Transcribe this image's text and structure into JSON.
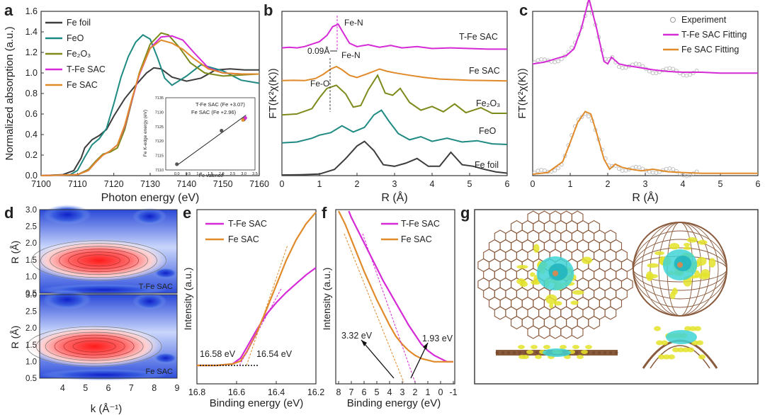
{
  "panel_letters": [
    "a",
    "b",
    "c",
    "d",
    "e",
    "f",
    "g"
  ],
  "colors": {
    "fe_foil": "#3d3d3d",
    "feo": "#1f8a82",
    "fe2o3": "#7e8a1c",
    "tfe": "#d52ad6",
    "fesac": "#e08a2a"
  },
  "chart_data": [
    {
      "panel": "a",
      "type": "line",
      "xlabel": "Photon energy (eV)",
      "ylabel": "Normalized absorption (a.u.)",
      "xlim": [
        7100,
        7160
      ],
      "ylim": [
        0.0,
        1.6
      ],
      "xticks": [
        "7100",
        "7110",
        "7120",
        "7130",
        "7140",
        "7150",
        "7160"
      ],
      "yticks": [
        "0.0",
        "0.2",
        "0.4",
        "0.6",
        "0.8",
        "1.0",
        "1.2",
        "1.4",
        "1.6"
      ],
      "legend": [
        "Fe foil",
        "FeO",
        "Fe₂O₃",
        "T-Fe SAC",
        "Fe SAC"
      ],
      "series": [
        {
          "name": "Fe foil",
          "color": "#3d3d3d",
          "x": [
            7100,
            7106,
            7109,
            7111,
            7112,
            7114,
            7116,
            7118,
            7120,
            7123,
            7126,
            7129,
            7131,
            7133,
            7136,
            7140,
            7144,
            7148,
            7152,
            7156,
            7160
          ],
          "y": [
            0.0,
            0.01,
            0.05,
            0.17,
            0.27,
            0.35,
            0.39,
            0.45,
            0.58,
            0.75,
            0.88,
            1.0,
            1.05,
            1.04,
            0.96,
            0.92,
            0.95,
            1.03,
            1.04,
            1.03,
            1.03
          ]
        },
        {
          "name": "FeO",
          "color": "#1f8a82",
          "x": [
            7100,
            7108,
            7110,
            7112,
            7114,
            7116,
            7118,
            7120,
            7122,
            7124,
            7126,
            7128,
            7130,
            7132,
            7134,
            7136,
            7140,
            7144,
            7150,
            7155,
            7160
          ],
          "y": [
            0.0,
            0.01,
            0.05,
            0.18,
            0.3,
            0.36,
            0.46,
            0.7,
            0.96,
            1.16,
            1.3,
            1.37,
            1.33,
            1.15,
            0.95,
            0.88,
            0.97,
            1.08,
            1.02,
            0.93,
            0.9
          ]
        },
        {
          "name": "Fe₂O₃",
          "color": "#7e8a1c",
          "x": [
            7100,
            7110,
            7113,
            7115,
            7117,
            7119,
            7121,
            7123,
            7125,
            7127,
            7130,
            7133,
            7135,
            7138,
            7141,
            7145,
            7150,
            7155,
            7160
          ],
          "y": [
            0.0,
            0.01,
            0.06,
            0.14,
            0.21,
            0.23,
            0.27,
            0.45,
            0.73,
            1.0,
            1.28,
            1.39,
            1.37,
            1.25,
            1.1,
            1.0,
            0.97,
            0.98,
            0.99
          ]
        },
        {
          "name": "T-Fe SAC",
          "color": "#d52ad6",
          "x": [
            7100,
            7110,
            7113,
            7115,
            7117,
            7119,
            7121,
            7123,
            7125,
            7127,
            7130,
            7133,
            7136,
            7139,
            7142,
            7146,
            7150,
            7155,
            7160
          ],
          "y": [
            0.0,
            0.01,
            0.05,
            0.13,
            0.2,
            0.24,
            0.3,
            0.48,
            0.74,
            0.98,
            1.24,
            1.35,
            1.36,
            1.32,
            1.2,
            1.05,
            1.0,
            0.99,
            0.99
          ]
        },
        {
          "name": "Fe SAC",
          "color": "#e08a2a",
          "x": [
            7100,
            7110,
            7113,
            7115,
            7117,
            7119,
            7121,
            7123,
            7125,
            7127,
            7130,
            7133,
            7136,
            7139,
            7142,
            7146,
            7150,
            7155,
            7160
          ],
          "y": [
            0.0,
            0.01,
            0.05,
            0.13,
            0.2,
            0.24,
            0.3,
            0.49,
            0.75,
            0.99,
            1.24,
            1.32,
            1.29,
            1.23,
            1.14,
            1.04,
            1.0,
            0.99,
            0.99
          ]
        }
      ],
      "inset": {
        "xlabel": "Fe valence",
        "ylabel": "Fe K-edge energy (eV)",
        "xlim": [
          -0.5,
          3.5
        ],
        "ylim": [
          7110,
          7135
        ],
        "xticks": [
          "0.0",
          "0.5",
          "1.0",
          "1.5",
          "2.0",
          "2.5",
          "3.0",
          "3.5"
        ],
        "yticks": [
          "7110",
          "7115",
          "7120",
          "7125",
          "7130",
          "7135"
        ],
        "points": [
          {
            "x": 0,
            "y": 7112.0
          },
          {
            "x": 2,
            "y": 7123.6
          },
          {
            "x": 3,
            "y": 7127.5
          }
        ],
        "sac_points": [
          {
            "x": 3.07,
            "y": 7128.0,
            "color": "#d52ad6"
          },
          {
            "x": 2.96,
            "y": 7127.3,
            "color": "#e08a2a"
          }
        ],
        "fit_line": {
          "x": [
            0,
            3.1
          ],
          "y": [
            7111.6,
            7129.0
          ]
        },
        "labels": [
          {
            "text": "T-Fe SAC (Fe +3.07)",
            "color": "#d52ad6"
          },
          {
            "text": "Fe SAC (Fe +2.96)",
            "color": "#e08a2a"
          }
        ]
      }
    },
    {
      "panel": "b",
      "type": "line",
      "xlabel": "R (Å)",
      "ylabel": "FT(K²χ(K))",
      "xlim": [
        0,
        6
      ],
      "xticks": [
        "0",
        "1",
        "2",
        "3",
        "4",
        "5",
        "6"
      ],
      "offsets": [
        4.0,
        3.0,
        1.9,
        0.9,
        0.0
      ],
      "labels": [
        "T-Fe SAC",
        "Fe SAC",
        "Fe₂O₃",
        "FeO",
        "Fe foil"
      ],
      "annotations": [
        "Fe-N",
        "0.09Å",
        "Fe-N",
        "Fe-O"
      ],
      "series": [
        {
          "name": "T-Fe SAC",
          "color": "#d52ad6",
          "x": [
            0,
            0.2,
            0.4,
            0.6,
            0.8,
            1.0,
            1.2,
            1.35,
            1.5,
            1.65,
            1.8,
            2.0,
            2.3,
            2.6,
            2.9,
            3.2,
            3.6,
            4.0,
            4.5,
            5.0,
            5.5,
            6.0
          ],
          "y": [
            0.1,
            0.12,
            0.1,
            0.14,
            0.22,
            0.3,
            0.5,
            0.78,
            0.86,
            0.55,
            0.25,
            0.14,
            0.2,
            0.12,
            0.18,
            0.1,
            0.14,
            0.08,
            0.1,
            0.08,
            0.06,
            0.06
          ]
        },
        {
          "name": "Fe SAC",
          "color": "#e08a2a",
          "x": [
            0,
            0.3,
            0.6,
            0.9,
            1.1,
            1.3,
            1.45,
            1.6,
            1.8,
            2.0,
            2.3,
            2.6,
            2.8,
            3.0,
            3.4,
            3.8,
            4.2,
            4.6,
            5.0,
            5.5,
            6.0
          ],
          "y": [
            0.05,
            0.06,
            0.05,
            0.12,
            0.25,
            0.42,
            0.5,
            0.4,
            0.22,
            0.15,
            0.28,
            0.42,
            0.35,
            0.3,
            0.22,
            0.15,
            0.1,
            0.08,
            0.06,
            0.05,
            0.04
          ]
        },
        {
          "name": "Fe₂O₃",
          "color": "#7e8a1c",
          "x": [
            0,
            0.4,
            0.8,
            1.0,
            1.2,
            1.45,
            1.7,
            1.9,
            2.1,
            2.3,
            2.55,
            2.75,
            2.95,
            3.15,
            3.4,
            3.7,
            4.0,
            4.3,
            4.6,
            4.9,
            5.3,
            5.6,
            6.0
          ],
          "y": [
            0.05,
            0.08,
            0.25,
            0.6,
            0.9,
            1.0,
            0.72,
            0.3,
            0.35,
            0.85,
            1.32,
            0.75,
            0.68,
            0.9,
            0.45,
            0.2,
            0.32,
            0.15,
            0.4,
            0.12,
            0.28,
            0.1,
            0.1
          ]
        },
        {
          "name": "FeO",
          "color": "#1f8a82",
          "x": [
            0,
            0.4,
            0.8,
            1.0,
            1.3,
            1.6,
            1.9,
            2.2,
            2.45,
            2.65,
            2.85,
            3.1,
            3.4,
            3.7,
            4.0,
            4.4,
            4.8,
            5.2,
            5.6,
            6.0
          ],
          "y": [
            0.15,
            0.18,
            0.3,
            0.4,
            0.48,
            0.7,
            0.5,
            0.65,
            1.05,
            1.2,
            0.85,
            0.45,
            0.25,
            0.35,
            0.2,
            0.3,
            0.18,
            0.22,
            0.12,
            0.1
          ]
        },
        {
          "name": "Fe foil",
          "color": "#3d3d3d",
          "x": [
            0,
            0.5,
            1.0,
            1.4,
            1.7,
            2.0,
            2.2,
            2.45,
            2.7,
            3.0,
            3.3,
            3.6,
            3.9,
            4.2,
            4.5,
            4.8,
            5.1,
            5.4,
            5.7,
            6.0
          ],
          "y": [
            0.02,
            0.03,
            0.05,
            0.2,
            0.55,
            0.95,
            1.1,
            0.8,
            0.35,
            0.3,
            0.4,
            0.55,
            0.3,
            0.3,
            0.75,
            0.35,
            0.3,
            0.2,
            0.12,
            0.08
          ]
        }
      ]
    },
    {
      "panel": "c",
      "type": "line",
      "xlabel": "R (Å)",
      "ylabel": "FT(K²χ(K))",
      "xlim": [
        0,
        6
      ],
      "xticks": [
        "0",
        "1",
        "2",
        "3",
        "4",
        "5",
        "6"
      ],
      "legend": [
        "Experiment",
        "T-Fe SAC Fitting",
        "Fe SAC Fitting"
      ],
      "series": [
        {
          "name": "T-Fe SAC Fitting",
          "color": "#d52ad6",
          "offset": 1.2,
          "x": [
            0,
            0.3,
            0.6,
            0.9,
            1.1,
            1.3,
            1.5,
            1.7,
            1.9,
            2.0,
            2.1,
            2.3,
            2.5,
            2.8,
            3.2,
            3.6,
            4.0,
            4.5,
            5.0,
            5.5,
            6.0
          ],
          "y": [
            0.12,
            0.14,
            0.18,
            0.22,
            0.3,
            0.55,
            0.9,
            0.55,
            0.15,
            0.12,
            0.2,
            0.12,
            0.1,
            0.08,
            0.05,
            0.03,
            0.02,
            0.02,
            0.01,
            0.01,
            0.01
          ]
        },
        {
          "name": "Fe SAC Fitting",
          "color": "#e08a2a",
          "offset": 0.0,
          "x": [
            0,
            0.4,
            0.8,
            1.0,
            1.2,
            1.4,
            1.55,
            1.7,
            1.9,
            2.05,
            2.2,
            2.4,
            2.6,
            2.9,
            3.2,
            3.6,
            4.0,
            4.5,
            5.0,
            5.5,
            6.0
          ],
          "y": [
            0.0,
            0.02,
            0.15,
            0.38,
            0.62,
            0.75,
            0.72,
            0.5,
            0.18,
            0.06,
            0.12,
            0.08,
            0.06,
            0.04,
            0.06,
            0.03,
            0.02,
            0.01,
            0.01,
            0.01,
            0.01
          ]
        }
      ]
    },
    {
      "panel": "d",
      "type": "heatmap",
      "xlabel": "k (Å⁻¹)",
      "ylabel": "R (Å)",
      "xlim": [
        3,
        9
      ],
      "ylim": [
        0.5,
        3.0
      ],
      "xticks": [
        "4",
        "5",
        "6",
        "7",
        "8",
        "9"
      ],
      "yticks": [
        "0.5",
        "1.0",
        "1.5",
        "2.0",
        "2.5",
        "3.0"
      ],
      "maps": [
        {
          "label": "T-Fe SAC",
          "peak_k": 5.4,
          "peak_r": 1.48
        },
        {
          "label": "Fe SAC",
          "peak_k": 5.2,
          "peak_r": 1.45
        }
      ]
    },
    {
      "panel": "e",
      "type": "line",
      "xlabel": "Binding energy (eV)",
      "ylabel": "Intensity (a.u.)",
      "xlim": [
        16.8,
        16.2
      ],
      "xticks": [
        "16.8",
        "16.6",
        "16.4",
        "16.2"
      ],
      "legend": [
        "T-Fe SAC",
        "Fe SAC"
      ],
      "annotations": [
        {
          "text": "16.58 eV",
          "color": "#d52ad6"
        },
        {
          "text": "16.54 eV",
          "color": "#e08a2a"
        }
      ],
      "series": [
        {
          "name": "T-Fe SAC",
          "color": "#d52ad6",
          "x": [
            16.8,
            16.7,
            16.62,
            16.58,
            16.55,
            16.5,
            16.45,
            16.4,
            16.35,
            16.3,
            16.25,
            16.2
          ],
          "y": [
            0.0,
            0.0,
            0.01,
            0.05,
            0.12,
            0.24,
            0.35,
            0.43,
            0.5,
            0.56,
            0.62,
            0.67
          ]
        },
        {
          "name": "Fe SAC",
          "color": "#e08a2a",
          "x": [
            16.8,
            16.7,
            16.62,
            16.58,
            16.55,
            16.5,
            16.45,
            16.4,
            16.35,
            16.3,
            16.25,
            16.2
          ],
          "y": [
            0.0,
            0.0,
            0.01,
            0.03,
            0.09,
            0.22,
            0.38,
            0.55,
            0.72,
            0.86,
            0.97,
            1.05
          ]
        }
      ]
    },
    {
      "panel": "f",
      "type": "line",
      "xlabel": "Binding energy (eV)",
      "ylabel": "Intensity (a.u.)",
      "xlim": [
        8,
        -1
      ],
      "xticks": [
        "8",
        "7",
        "6",
        "5",
        "4",
        "3",
        "2",
        "1",
        "0",
        "-1"
      ],
      "legend": [
        "T-Fe SAC",
        "Fe SAC"
      ],
      "annotations": [
        {
          "text": "3.32 eV",
          "color": "#e08a2a"
        },
        {
          "text": "1.93 eV",
          "color": "#d52ad6"
        }
      ],
      "series": [
        {
          "name": "T-Fe SAC",
          "color": "#d52ad6",
          "x": [
            7.2,
            7.0,
            6.5,
            6.0,
            5.5,
            5.0,
            4.5,
            4.0,
            3.5,
            3.0,
            2.5,
            2.0,
            1.5,
            1.0,
            0.5,
            0.0,
            -0.5,
            -1.0
          ],
          "y": [
            1.0,
            0.96,
            0.88,
            0.8,
            0.72,
            0.64,
            0.56,
            0.49,
            0.42,
            0.35,
            0.28,
            0.22,
            0.16,
            0.12,
            0.09,
            0.07,
            0.05,
            0.05
          ]
        },
        {
          "name": "Fe SAC",
          "color": "#e08a2a",
          "x": [
            8.0,
            7.5,
            7.0,
            6.5,
            6.0,
            5.5,
            5.0,
            4.5,
            4.0,
            3.5,
            3.0,
            2.5,
            2.0,
            1.5,
            1.0,
            0.5,
            0.0,
            -0.5,
            -1.0
          ],
          "y": [
            1.0,
            0.92,
            0.82,
            0.72,
            0.62,
            0.53,
            0.44,
            0.36,
            0.28,
            0.21,
            0.16,
            0.12,
            0.09,
            0.07,
            0.06,
            0.05,
            0.05,
            0.05,
            0.05
          ]
        }
      ]
    }
  ]
}
